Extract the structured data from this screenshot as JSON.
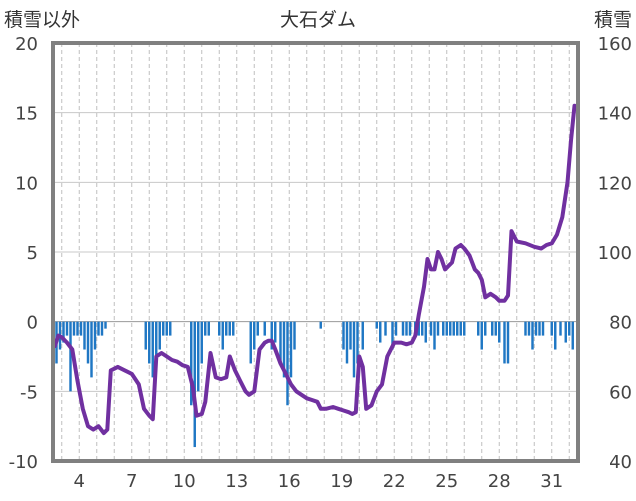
{
  "chart_data": {
    "type": "bar+line",
    "title": "大石ダム",
    "left_axis_label": "積雪以外",
    "right_axis_label": "積雪",
    "ylim_left": [
      -10,
      20
    ],
    "yticks_left": [
      "20",
      "15",
      "10",
      "5",
      "0",
      "-5",
      "-10"
    ],
    "ylim_right": [
      40,
      160
    ],
    "yticks_right": [
      "160",
      "140",
      "120",
      "100",
      "80",
      "60",
      "40"
    ],
    "xlim": [
      2.5,
      32.5
    ],
    "xticks": [
      "4",
      "7",
      "10",
      "13",
      "16",
      "19",
      "22",
      "25",
      "28",
      "31"
    ],
    "grid_x": "dashed vertical lines at each day",
    "colors": {
      "bars": "#1f77c4",
      "line": "#7030a0",
      "frame": "#808080",
      "grid": "#bfbfbf"
    },
    "bars_axis": "left",
    "bars": [
      [
        2.7,
        -3
      ],
      [
        2.9,
        -2
      ],
      [
        3.1,
        -1.5
      ],
      [
        3.3,
        -1
      ],
      [
        3.5,
        -5
      ],
      [
        3.7,
        -1
      ],
      [
        3.9,
        -1
      ],
      [
        4.1,
        -1
      ],
      [
        4.3,
        -2
      ],
      [
        4.5,
        -3
      ],
      [
        4.7,
        -4
      ],
      [
        4.9,
        -2
      ],
      [
        5.1,
        -1
      ],
      [
        5.3,
        -1
      ],
      [
        5.5,
        -0.5
      ],
      [
        7.8,
        -2
      ],
      [
        8.0,
        -3
      ],
      [
        8.2,
        -4
      ],
      [
        8.4,
        -3
      ],
      [
        8.6,
        -2
      ],
      [
        8.8,
        -1
      ],
      [
        9.0,
        -1
      ],
      [
        9.2,
        -1
      ],
      [
        10.4,
        -6
      ],
      [
        10.6,
        -9
      ],
      [
        10.8,
        -5
      ],
      [
        11.0,
        -3
      ],
      [
        11.2,
        -1
      ],
      [
        11.4,
        -1
      ],
      [
        12.0,
        -1
      ],
      [
        12.2,
        -2
      ],
      [
        12.4,
        -1
      ],
      [
        12.6,
        -1
      ],
      [
        12.8,
        -1
      ],
      [
        13.8,
        -3
      ],
      [
        14.0,
        -2
      ],
      [
        14.2,
        -1
      ],
      [
        14.6,
        -1
      ],
      [
        15.0,
        -2
      ],
      [
        15.2,
        -1.5
      ],
      [
        15.5,
        -3
      ],
      [
        15.7,
        -4
      ],
      [
        15.9,
        -6
      ],
      [
        16.1,
        -4
      ],
      [
        16.3,
        -2
      ],
      [
        17.8,
        -0.5
      ],
      [
        19.1,
        -2
      ],
      [
        19.3,
        -3
      ],
      [
        19.5,
        -2
      ],
      [
        19.7,
        -4
      ],
      [
        19.9,
        -3
      ],
      [
        20.2,
        -2
      ],
      [
        21.0,
        -0.5
      ],
      [
        21.2,
        -1.5
      ],
      [
        21.5,
        -1
      ],
      [
        21.9,
        -2
      ],
      [
        22.1,
        -1
      ],
      [
        22.5,
        -1
      ],
      [
        22.7,
        -1
      ],
      [
        22.9,
        -1
      ],
      [
        23.2,
        -1
      ],
      [
        23.4,
        -1
      ],
      [
        23.6,
        -1
      ],
      [
        23.8,
        -1.5
      ],
      [
        24.1,
        -1
      ],
      [
        24.3,
        -2
      ],
      [
        24.5,
        -1
      ],
      [
        24.8,
        -1
      ],
      [
        25.0,
        -1
      ],
      [
        25.2,
        -1
      ],
      [
        25.4,
        -1
      ],
      [
        25.6,
        -1
      ],
      [
        25.8,
        -1
      ],
      [
        26.0,
        -1
      ],
      [
        26.8,
        -1
      ],
      [
        27.0,
        -2
      ],
      [
        27.2,
        -1
      ],
      [
        27.6,
        -1
      ],
      [
        27.8,
        -1
      ],
      [
        28.0,
        -1.5
      ],
      [
        28.3,
        -3
      ],
      [
        28.5,
        -3
      ],
      [
        29.5,
        -1
      ],
      [
        29.7,
        -1
      ],
      [
        29.9,
        -2
      ],
      [
        30.1,
        -1
      ],
      [
        30.3,
        -1
      ],
      [
        30.5,
        -1
      ],
      [
        31.0,
        -1
      ],
      [
        31.2,
        -2
      ],
      [
        31.5,
        -1
      ],
      [
        31.8,
        -1.5
      ],
      [
        32.0,
        -1
      ],
      [
        32.2,
        -2
      ]
    ],
    "line_axis": "right",
    "line": [
      [
        2.6,
        73
      ],
      [
        2.8,
        76
      ],
      [
        3.0,
        75.5
      ],
      [
        3.3,
        74
      ],
      [
        3.6,
        72
      ],
      [
        3.9,
        63
      ],
      [
        4.2,
        55
      ],
      [
        4.5,
        50
      ],
      [
        4.8,
        49
      ],
      [
        5.1,
        50
      ],
      [
        5.4,
        48
      ],
      [
        5.6,
        49
      ],
      [
        5.8,
        66
      ],
      [
        6.2,
        67
      ],
      [
        6.6,
        66
      ],
      [
        7.0,
        65
      ],
      [
        7.4,
        62
      ],
      [
        7.7,
        55
      ],
      [
        8.0,
        53
      ],
      [
        8.2,
        52
      ],
      [
        8.4,
        70
      ],
      [
        8.7,
        71
      ],
      [
        9.0,
        70
      ],
      [
        9.3,
        69
      ],
      [
        9.6,
        68.5
      ],
      [
        9.9,
        67.5
      ],
      [
        10.2,
        67
      ],
      [
        10.5,
        61
      ],
      [
        10.7,
        53
      ],
      [
        11.0,
        53.5
      ],
      [
        11.2,
        57
      ],
      [
        11.5,
        71
      ],
      [
        11.8,
        64
      ],
      [
        12.1,
        63.5
      ],
      [
        12.4,
        64
      ],
      [
        12.6,
        70
      ],
      [
        12.9,
        66
      ],
      [
        13.2,
        63
      ],
      [
        13.5,
        60
      ],
      [
        13.7,
        59
      ],
      [
        14.0,
        60
      ],
      [
        14.3,
        72
      ],
      [
        14.6,
        74
      ],
      [
        14.8,
        74.5
      ],
      [
        15.0,
        74.5
      ],
      [
        15.2,
        72
      ],
      [
        15.5,
        68
      ],
      [
        15.8,
        65
      ],
      [
        16.1,
        62
      ],
      [
        16.4,
        60
      ],
      [
        16.7,
        59
      ],
      [
        17.0,
        58
      ],
      [
        17.3,
        57.5
      ],
      [
        17.6,
        57
      ],
      [
        17.8,
        55
      ],
      [
        18.1,
        55
      ],
      [
        18.5,
        55.5
      ],
      [
        18.8,
        55
      ],
      [
        19.1,
        54.5
      ],
      [
        19.4,
        54
      ],
      [
        19.6,
        53.5
      ],
      [
        19.8,
        54
      ],
      [
        20.0,
        70
      ],
      [
        20.2,
        67
      ],
      [
        20.4,
        55
      ],
      [
        20.7,
        56
      ],
      [
        21.0,
        60
      ],
      [
        21.3,
        62
      ],
      [
        21.6,
        70
      ],
      [
        22.0,
        74
      ],
      [
        22.4,
        74
      ],
      [
        22.7,
        73.5
      ],
      [
        23.0,
        74
      ],
      [
        23.2,
        76
      ],
      [
        23.4,
        82
      ],
      [
        23.7,
        90
      ],
      [
        23.9,
        98
      ],
      [
        24.1,
        95
      ],
      [
        24.3,
        95
      ],
      [
        24.5,
        100
      ],
      [
        24.7,
        98
      ],
      [
        24.9,
        95
      ],
      [
        25.1,
        96
      ],
      [
        25.3,
        97
      ],
      [
        25.5,
        101
      ],
      [
        25.8,
        102
      ],
      [
        26.0,
        101
      ],
      [
        26.3,
        99
      ],
      [
        26.6,
        95
      ],
      [
        26.8,
        94
      ],
      [
        27.0,
        92
      ],
      [
        27.2,
        87
      ],
      [
        27.5,
        88
      ],
      [
        27.8,
        87
      ],
      [
        28.0,
        86
      ],
      [
        28.3,
        86
      ],
      [
        28.5,
        87.5
      ],
      [
        28.7,
        106
      ],
      [
        29.0,
        103
      ],
      [
        29.5,
        102.5
      ],
      [
        30.0,
        101.5
      ],
      [
        30.4,
        101
      ],
      [
        30.7,
        102
      ],
      [
        31.0,
        102.5
      ],
      [
        31.3,
        105
      ],
      [
        31.6,
        110
      ],
      [
        31.9,
        120
      ],
      [
        32.1,
        132
      ],
      [
        32.3,
        142
      ]
    ]
  }
}
